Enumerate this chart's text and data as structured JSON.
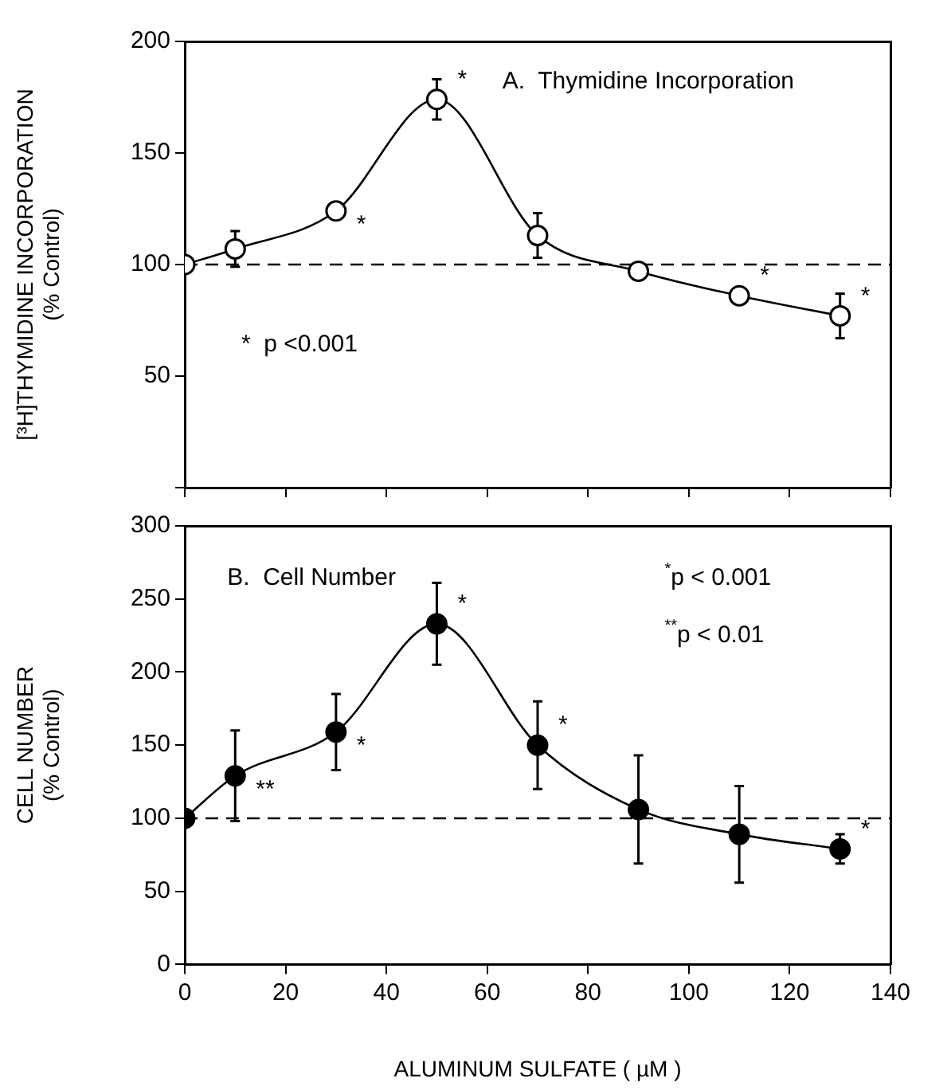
{
  "chart_data": [
    {
      "type": "line",
      "ylabel": "[³H]THYMIDINE INCORPORATION\n(% Control)",
      "x": [
        0,
        10,
        30,
        50,
        70,
        90,
        110,
        130
      ],
      "series": [
        {
          "color": "#000000",
          "values": [
            100,
            107,
            124,
            174,
            113,
            97,
            86,
            77
          ],
          "errors": [
            null,
            8,
            null,
            9,
            10,
            null,
            null,
            10
          ]
        }
      ],
      "xlim": [
        0,
        140
      ],
      "xticks": [
        0,
        20,
        40,
        60,
        80,
        100,
        120,
        140
      ],
      "ylim": [
        0,
        200
      ],
      "yticks": [
        {
          "value": 0,
          "label": null
        },
        50,
        100,
        150,
        200
      ],
      "tick_labels": "y",
      "marker": "circle",
      "line_style": "solid",
      "grid": false,
      "legend": false,
      "ref_lines": [
        {
          "axis": "y",
          "value": 100,
          "line_style": "dashed"
        }
      ],
      "annotations": [
        "A.  Thymidine Incorporation",
        "*  p <0.001",
        {
          "text": "*",
          "x": 30,
          "y": 124
        },
        {
          "text": "*",
          "x": 50,
          "y": 174
        },
        {
          "text": "*",
          "x": 110,
          "y": 86
        },
        {
          "text": "*",
          "x": 130,
          "y": 77
        }
      ]
    },
    {
      "type": "line",
      "ylabel": "CELL NUMBER\n(% Control)",
      "xlabel": "ALUMINUM SULFATE ( µM )",
      "x": [
        0,
        10,
        30,
        50,
        70,
        90,
        110,
        130
      ],
      "series": [
        {
          "color": "#000000",
          "values": [
            100,
            129,
            159,
            233,
            150,
            106,
            89,
            79
          ],
          "errors": [
            null,
            31,
            26,
            28,
            30,
            37,
            33,
            10
          ]
        }
      ],
      "xlim": [
        0,
        140
      ],
      "xticks": [
        0,
        20,
        40,
        60,
        80,
        100,
        120,
        140
      ],
      "ylim": [
        0,
        300
      ],
      "yticks": [
        0,
        50,
        100,
        150,
        200,
        250,
        300
      ],
      "marker": "circle",
      "line_style": "solid",
      "grid": false,
      "legend": false,
      "ref_lines": [
        {
          "axis": "y",
          "value": 100,
          "line_style": "dashed"
        }
      ],
      "annotations": [
        "B.  Cell Number",
        "$^{*}$p < 0.001",
        "$^{**}$p < 0.01",
        {
          "text": "**",
          "x": 10,
          "y": 129
        },
        {
          "text": "*",
          "x": 30,
          "y": 159
        },
        {
          "text": "*",
          "x": 50,
          "y": 233
        },
        {
          "text": "*",
          "x": 70,
          "y": 150
        },
        {
          "text": "*",
          "x": 130,
          "y": 79
        }
      ]
    }
  ]
}
